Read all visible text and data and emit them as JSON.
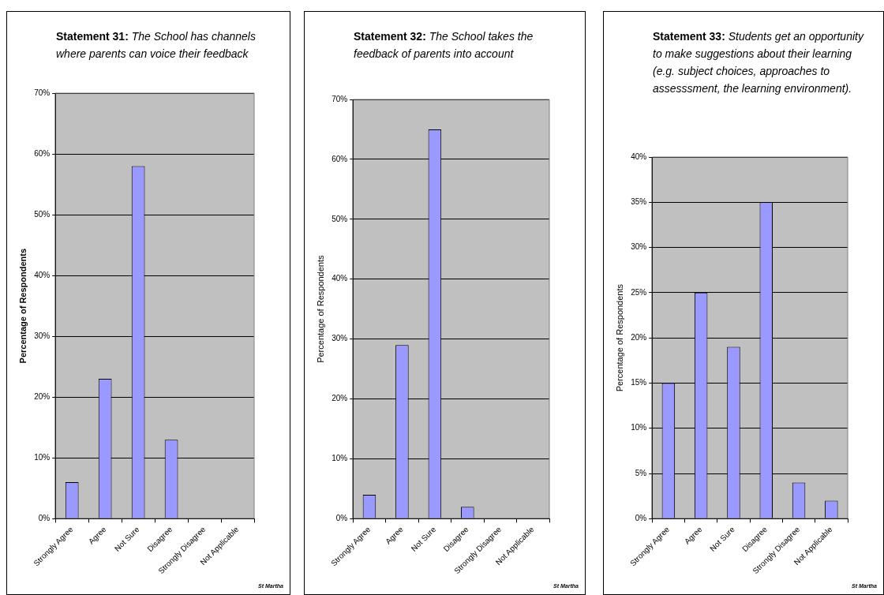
{
  "chart_data": [
    {
      "type": "bar",
      "title": "Statement 31:",
      "subtitle": "The School has channels where parents can voice their feedback",
      "categories": [
        "Strongly Agree",
        "Agree",
        "Not Sure",
        "Disagree",
        "Strongly Disagree",
        "Not Applicable"
      ],
      "values": [
        6,
        23,
        58,
        13,
        0,
        0
      ],
      "color": "#9999ff",
      "ylabel": "Percentage of Respondents",
      "ylim": [
        0,
        70
      ],
      "yticks": [
        {
          "value": 0,
          "label": "0%"
        },
        {
          "value": 10,
          "label": "10%"
        },
        {
          "value": 20,
          "label": "20%"
        },
        {
          "value": 30,
          "label": "30%"
        },
        {
          "value": 40,
          "label": "40%"
        },
        {
          "value": 50,
          "label": "50%"
        },
        {
          "value": 60,
          "label": "60%"
        },
        {
          "value": 70,
          "label": "70%"
        }
      ],
      "grid": "y",
      "annotations": [
        "St Martha"
      ]
    },
    {
      "type": "bar",
      "title": "Statement 32:",
      "subtitle": "The School takes the feedback of parents into account",
      "categories": [
        "Strongly Agree",
        "Agree",
        "Not Sure",
        "Disagree",
        "Strongly Disagree",
        "Not Applicable"
      ],
      "values": [
        4,
        29,
        65,
        2,
        0,
        0
      ],
      "color": "#9999ff",
      "ylabel": "Percentage of Respondents",
      "ylim": [
        0,
        70
      ],
      "yticks": [
        {
          "value": 0,
          "label": "0%"
        },
        {
          "value": 10,
          "label": "10%"
        },
        {
          "value": 20,
          "label": "20%"
        },
        {
          "value": 30,
          "label": "30%"
        },
        {
          "value": 40,
          "label": "40%"
        },
        {
          "value": 50,
          "label": "50%"
        },
        {
          "value": 60,
          "label": "60%"
        },
        {
          "value": 70,
          "label": "70%"
        }
      ],
      "grid": "y",
      "annotations": [
        "St Martha"
      ]
    },
    {
      "type": "bar",
      "title": "Statement 33:",
      "subtitle": "Students get an opportunity to make suggestions about their learning (e.g. subject choices, approaches to assesssment, the learning environment).",
      "categories": [
        "Strongly Agree",
        "Agree",
        "Not Sure",
        "Disagree",
        "Strongly Disagree",
        "Not Applicable"
      ],
      "values": [
        15,
        25,
        19,
        35,
        4,
        2
      ],
      "color": "#9999ff",
      "ylabel": "Percentage of Respondents",
      "ylim": [
        0,
        40
      ],
      "yticks": [
        {
          "value": 0,
          "label": "0%"
        },
        {
          "value": 5,
          "label": "5%"
        },
        {
          "value": 10,
          "label": "10%"
        },
        {
          "value": 15,
          "label": "15%"
        },
        {
          "value": 20,
          "label": "20%"
        },
        {
          "value": 25,
          "label": "25%"
        },
        {
          "value": 30,
          "label": "30%"
        },
        {
          "value": 35,
          "label": "35%"
        },
        {
          "value": 40,
          "label": "40%"
        }
      ],
      "grid": "y",
      "annotations": [
        "St Martha"
      ]
    }
  ]
}
